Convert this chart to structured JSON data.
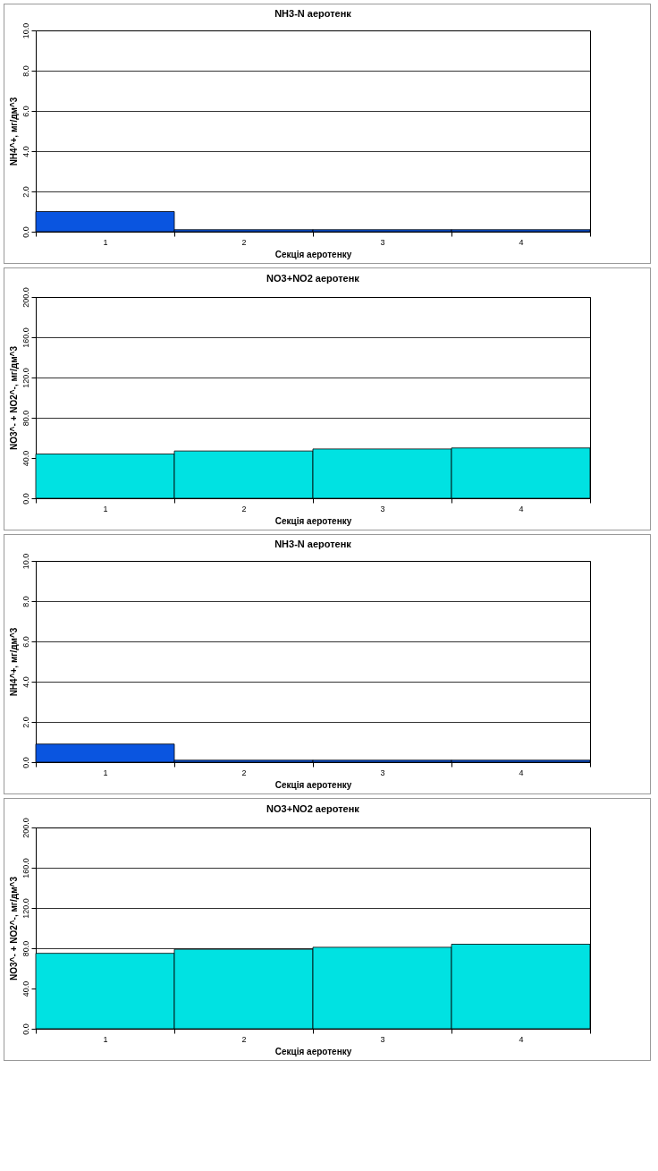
{
  "chart_data": [
    {
      "type": "bar",
      "title": "NH3-N аеротенк",
      "xlabel": "Секція аеротенку",
      "ylabel": "NH4^+, мг/дм^3",
      "categories": [
        "1",
        "2",
        "3",
        "4"
      ],
      "values": [
        1.0,
        0.1,
        0.1,
        0.1
      ],
      "color": "#0a55e0",
      "ylim": [
        0,
        10
      ],
      "yticks": [
        {
          "value": 0,
          "label": "0.0"
        },
        {
          "value": 2,
          "label": "2.0"
        },
        {
          "value": 4,
          "label": "4.0"
        },
        {
          "value": 6,
          "label": "6.0"
        },
        {
          "value": 8,
          "label": "8.0"
        },
        {
          "value": 10,
          "label": "10.0"
        }
      ],
      "grid": "y"
    },
    {
      "type": "bar",
      "title": "NO3+NO2 аеротенк",
      "xlabel": "Секція аеротенку",
      "ylabel": "NO3^- + NO2^-, мг/дм^3",
      "categories": [
        "1",
        "2",
        "3",
        "4"
      ],
      "values": [
        44,
        47,
        49,
        50
      ],
      "color": "#00e2e2",
      "ylim": [
        0,
        200
      ],
      "yticks": [
        {
          "value": 0,
          "label": "0.0"
        },
        {
          "value": 40,
          "label": "40.0"
        },
        {
          "value": 80,
          "label": "80.0"
        },
        {
          "value": 120,
          "label": "120.0"
        },
        {
          "value": 160,
          "label": "160.0"
        },
        {
          "value": 200,
          "label": "200.0"
        }
      ],
      "grid": "y"
    },
    {
      "type": "bar",
      "title": "NH3-N аеротенк",
      "xlabel": "Секція аеротенку",
      "ylabel": "NH4^+, мг/дм^3",
      "categories": [
        "1",
        "2",
        "3",
        "4"
      ],
      "values": [
        0.9,
        0.1,
        0.1,
        0.1
      ],
      "color": "#0a55e0",
      "ylim": [
        0,
        10
      ],
      "yticks": [
        {
          "value": 0,
          "label": "0.0"
        },
        {
          "value": 2,
          "label": "2.0"
        },
        {
          "value": 4,
          "label": "4.0"
        },
        {
          "value": 6,
          "label": "6.0"
        },
        {
          "value": 8,
          "label": "8.0"
        },
        {
          "value": 10,
          "label": "10.0"
        }
      ],
      "grid": "y"
    },
    {
      "type": "bar",
      "title": "NO3+NO2 аеротенк",
      "xlabel": "Секція аеротенку",
      "ylabel": "NO3^- + NO2^-, мг/дм^3",
      "categories": [
        "1",
        "2",
        "3",
        "4"
      ],
      "values": [
        75,
        79,
        81,
        84
      ],
      "color": "#00e2e2",
      "ylim": [
        0,
        200
      ],
      "yticks": [
        {
          "value": 0,
          "label": "0.0"
        },
        {
          "value": 40,
          "label": "40.0"
        },
        {
          "value": 80,
          "label": "80.0"
        },
        {
          "value": 120,
          "label": "120.0"
        },
        {
          "value": 160,
          "label": "160.0"
        },
        {
          "value": 200,
          "label": "200.0"
        }
      ],
      "grid": "y"
    }
  ]
}
